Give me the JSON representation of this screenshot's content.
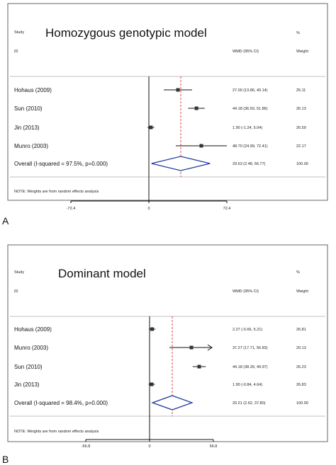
{
  "chart_data": [
    {
      "type": "forest",
      "panel_letter": "A",
      "title": "Homozygous genotypic model",
      "header": {
        "study": "Study",
        "id": "ID",
        "wmd": "WMD (95% CI)",
        "pct": "%",
        "weight": "Weight"
      },
      "studies": [
        {
          "label": "Hohaus (2009)",
          "est": 27.0,
          "lo": 13.86,
          "hi": 40.14,
          "ci_text": "27.00 (13.86, 40.14)",
          "weight": "25.11",
          "arrow": false
        },
        {
          "label": "Sun (2010)",
          "est": 44.18,
          "lo": 36.5,
          "hi": 51.86,
          "ci_text": "44.18 (36.50, 51.86)",
          "weight": "26.13",
          "arrow": false
        },
        {
          "label": "Jin (2013)",
          "est": 1.9,
          "lo": -1.24,
          "hi": 5.04,
          "ci_text": "1.90 (-1.24, 5.04)",
          "weight": "26.59",
          "arrow": false
        },
        {
          "label": "Munro (2003)",
          "est": 48.7,
          "lo": 24.99,
          "hi": 72.41,
          "ci_text": "48.70 (24.99, 72.41)",
          "weight": "22.17",
          "arrow": false
        }
      ],
      "overall": {
        "label": "Overall (I-squared = 97.5%, p=0.000)",
        "est": 29.63,
        "lo": 2.48,
        "hi": 56.77,
        "ci_text": "29.63 (2.48, 56.77)",
        "weight": "100.00"
      },
      "note": "NOTE: Weights are from random effects analysis",
      "xlim": [
        -72.4,
        72.4
      ],
      "ticks": [
        "-72.4",
        "0",
        "72.4"
      ]
    },
    {
      "type": "forest",
      "panel_letter": "B",
      "title": "Dominant model",
      "header": {
        "study": "Study",
        "id": "ID",
        "wmd": "WMD (95% CI)",
        "pct": "%",
        "weight": "Weight"
      },
      "studies": [
        {
          "label": "Hohaus (2009)",
          "est": 2.27,
          "lo": -0.66,
          "hi": 5.21,
          "ci_text": "2.27 (-0.66, 5.21)",
          "weight": "26.81",
          "arrow": false
        },
        {
          "label": "Munro (2003)",
          "est": 37.27,
          "lo": 17.71,
          "hi": 56.83,
          "ci_text": "37.27 (17.71, 56.83)",
          "weight": "20.13",
          "arrow": true
        },
        {
          "label": "Sun (2010)",
          "est": 44.18,
          "lo": 38.39,
          "hi": 49.97,
          "ci_text": "44.18 (38.39, 49.97)",
          "weight": "26.23",
          "arrow": false
        },
        {
          "label": "Jin (2013)",
          "est": 1.9,
          "lo": -0.84,
          "hi": 4.64,
          "ci_text": "1.90 (-0.84, 4.64)",
          "weight": "26.83",
          "arrow": false
        }
      ],
      "overall": {
        "label": "Overall (I-squared = 98.4%, p=0.000)",
        "est": 20.21,
        "lo": 2.62,
        "hi": 37.8,
        "ci_text": "20.21 (2.62, 37.80)",
        "weight": "100.00"
      },
      "note": "NOTE: Weights are from random effects analysis",
      "xlim": [
        -56.8,
        56.8
      ],
      "ticks": [
        "-56.8",
        "0",
        "56.8"
      ]
    }
  ]
}
